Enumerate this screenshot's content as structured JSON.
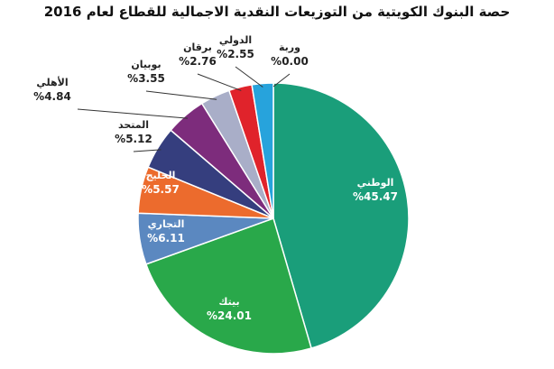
{
  "chart_data": {
    "type": "pie",
    "title": "حصة البنوك الكويتية من التوزيعات النقدية الاجمالية للقطاع لعام 2016",
    "slices": [
      {
        "name": "الوطني",
        "value": 45.47,
        "label": "%45.47",
        "color": "#1a9e7a"
      },
      {
        "name": "بيتك",
        "value": 24.01,
        "label": "%24.01",
        "color": "#29a84a"
      },
      {
        "name": "التجاري",
        "value": 6.11,
        "label": "%6.11",
        "color": "#5b88c0"
      },
      {
        "name": "الخليج",
        "value": 5.57,
        "label": "%5.57",
        "color": "#ec6b2d"
      },
      {
        "name": "المتحد",
        "value": 5.12,
        "label": "%5.12",
        "color": "#353e7e"
      },
      {
        "name": "الأهلي",
        "value": 4.84,
        "label": "%4.84",
        "color": "#7d2c7c"
      },
      {
        "name": "بوبيان",
        "value": 3.55,
        "label": "%3.55",
        "color": "#a9aec8"
      },
      {
        "name": "برقان",
        "value": 2.76,
        "label": "%2.76",
        "color": "#e0232b"
      },
      {
        "name": "الدولي",
        "value": 2.55,
        "label": "%2.55",
        "color": "#27a3dc"
      },
      {
        "name": "وربة",
        "value": 0.0,
        "label": "%0.00",
        "color": "#1a9e7a"
      }
    ]
  }
}
